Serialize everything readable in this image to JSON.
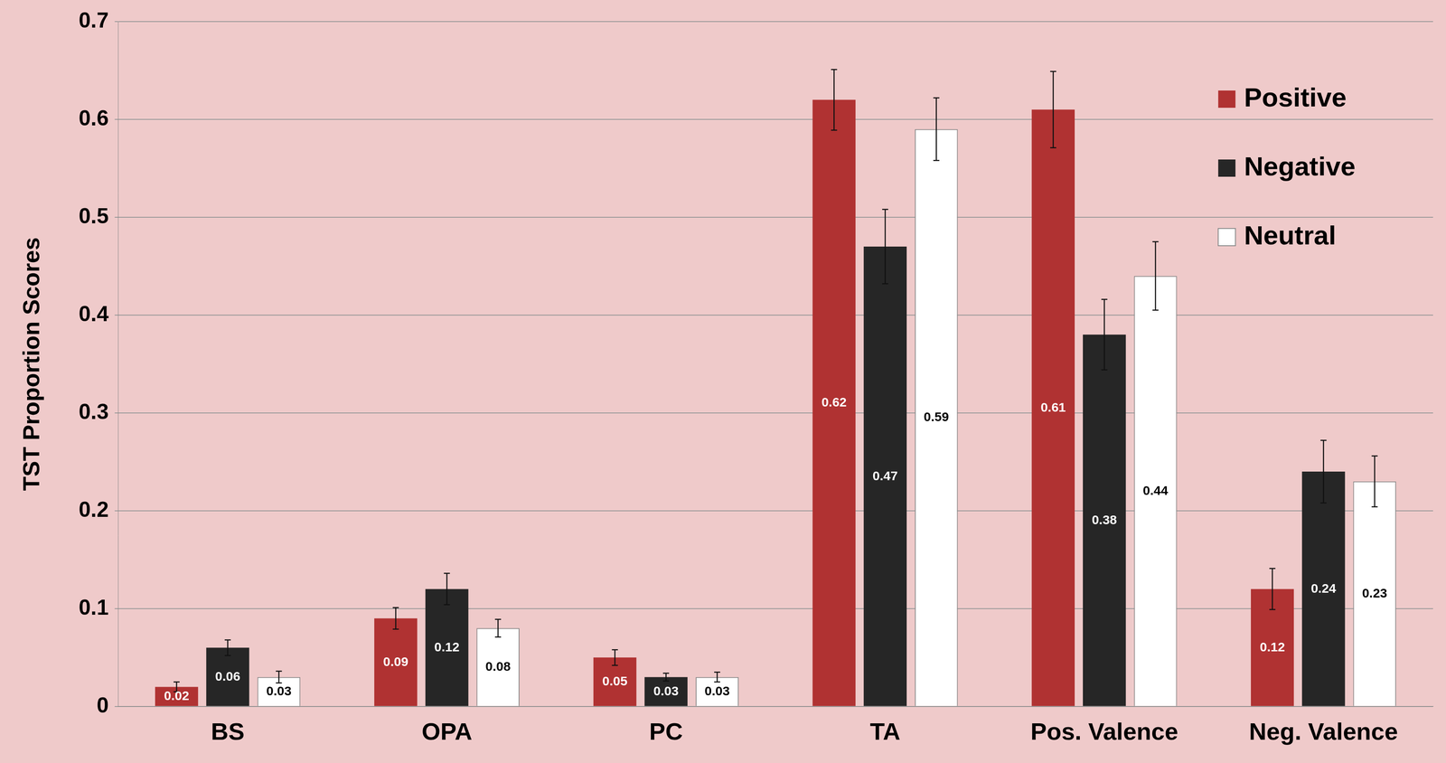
{
  "chart_data": {
    "type": "bar",
    "y_label": "TST Proportion Scores",
    "categories": [
      "BS",
      "OPA",
      "PC",
      "TA",
      "Pos. Valence",
      "Neg. Valence"
    ],
    "series": [
      {
        "name": "Positive",
        "color": "#b03232",
        "values": [
          0.02,
          0.09,
          0.05,
          0.62,
          0.61,
          0.12
        ],
        "errors": [
          0.005,
          0.011,
          0.008,
          0.031,
          0.039,
          0.021
        ]
      },
      {
        "name": "Negative",
        "color": "#262626",
        "values": [
          0.06,
          0.12,
          0.03,
          0.47,
          0.38,
          0.24
        ],
        "errors": [
          0.008,
          0.016,
          0.004,
          0.038,
          0.036,
          0.032
        ]
      },
      {
        "name": "Neutral",
        "color": "#ffffff",
        "values": [
          0.03,
          0.08,
          0.03,
          0.59,
          0.44,
          0.23
        ],
        "errors": [
          0.006,
          0.009,
          0.005,
          0.032,
          0.035,
          0.026
        ]
      }
    ],
    "ylim": [
      0,
      0.7
    ],
    "yticks": [
      0,
      0.1,
      0.2,
      0.3,
      0.4,
      0.5,
      0.6,
      0.7
    ],
    "grid": true,
    "legend": "upper right",
    "data_labels": true
  }
}
